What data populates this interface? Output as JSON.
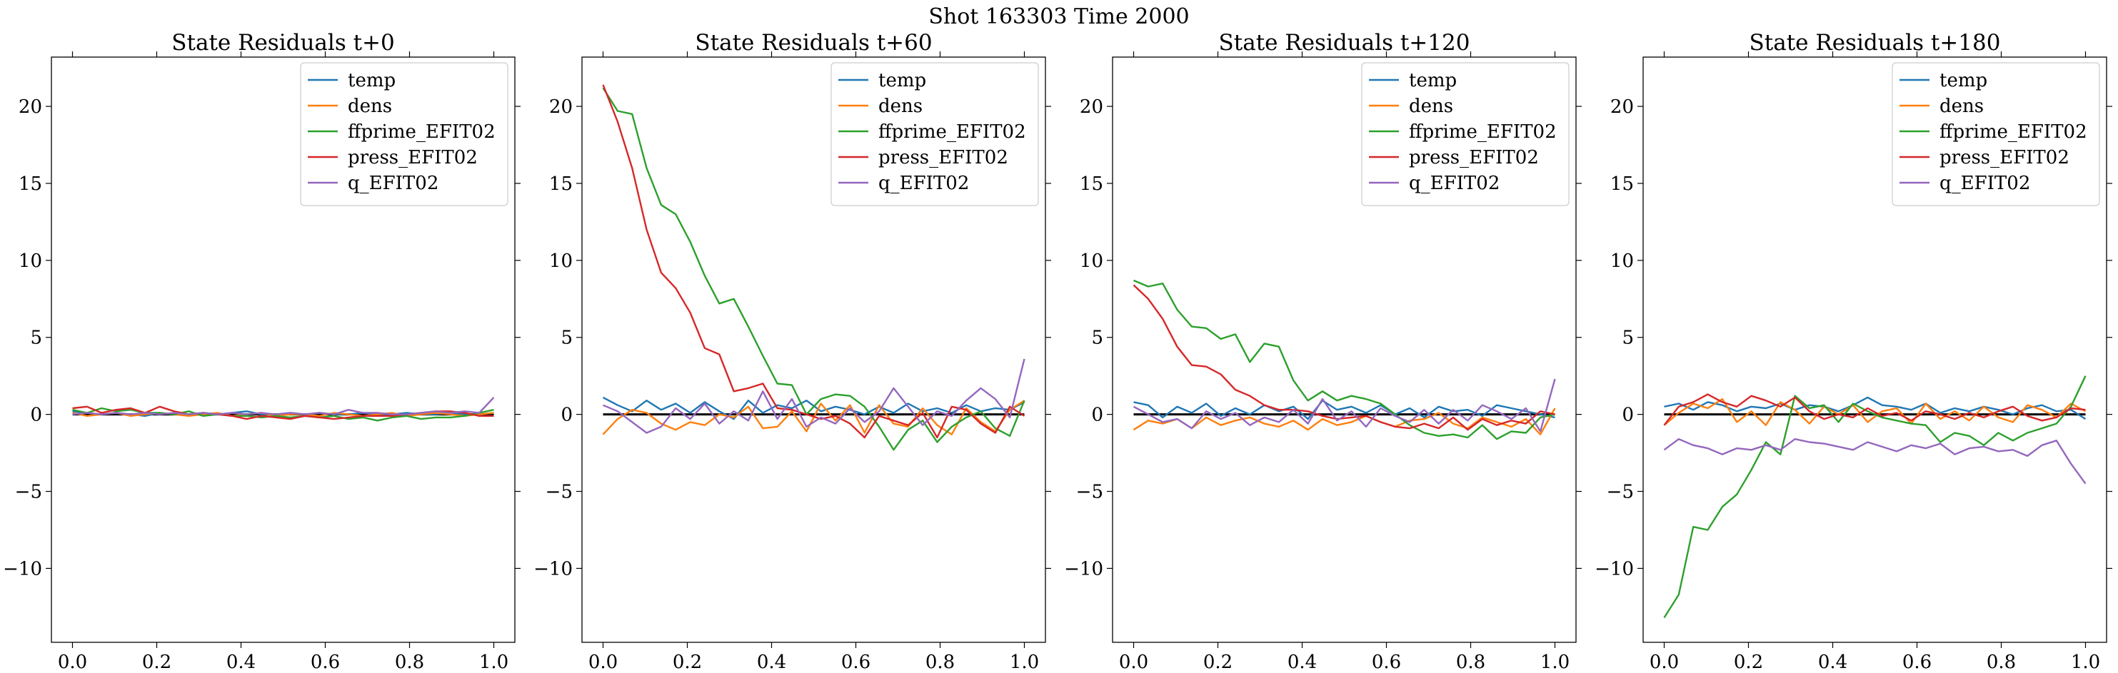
{
  "figure": {
    "suptitle": "Shot 163303   Time 2000"
  },
  "colors": {
    "temp": "#1f77b4",
    "dens": "#ff7f0e",
    "ffprime_EFIT02": "#2ca02c",
    "press_EFIT02": "#d62728",
    "q_EFIT02": "#9467bd",
    "zero_line": "#000000"
  },
  "chart_data": [
    {
      "type": "line",
      "title": "State Residuals t+0",
      "xlim": [
        -0.05,
        1.05
      ],
      "ylim": [
        -14.8,
        23.2
      ],
      "xticks": [
        0.0,
        0.2,
        0.4,
        0.6,
        0.8,
        1.0
      ],
      "xtick_labels": [
        "0.0",
        "0.2",
        "0.4",
        "0.6",
        "0.8",
        "1.0"
      ],
      "yticks": [
        -10,
        -5,
        0,
        5,
        10,
        15,
        20
      ],
      "ytick_labels": [
        "−10",
        "−5",
        "0",
        "5",
        "10",
        "15",
        "20"
      ],
      "legend": "top-right",
      "x": [
        0.0,
        0.0345,
        0.069,
        0.1034,
        0.1379,
        0.1724,
        0.2069,
        0.2414,
        0.2759,
        0.3103,
        0.3448,
        0.3793,
        0.4138,
        0.4483,
        0.4828,
        0.5172,
        0.5517,
        0.5862,
        0.6207,
        0.6552,
        0.6897,
        0.7241,
        0.7586,
        0.7931,
        0.8276,
        0.8621,
        0.8966,
        0.931,
        0.9655,
        1.0
      ],
      "series": [
        {
          "name": "temp",
          "values": [
            0.2,
            0.1,
            0.0,
            0.1,
            0.0,
            -0.1,
            0.1,
            0.0,
            0.0,
            0.1,
            0.0,
            0.1,
            0.2,
            0.0,
            0.0,
            0.1,
            0.0,
            0.1,
            0.0,
            0.0,
            0.1,
            0.0,
            0.0,
            0.1,
            0.0,
            0.0,
            0.1,
            0.0,
            0.0,
            0.1
          ]
        },
        {
          "name": "dens",
          "values": [
            0.1,
            -0.1,
            0.0,
            0.1,
            -0.1,
            0.0,
            0.1,
            0.0,
            -0.1,
            0.0,
            0.1,
            -0.1,
            0.0,
            0.1,
            -0.1,
            0.0,
            0.0,
            -0.1,
            0.1,
            0.0,
            -0.1,
            0.0,
            0.1,
            -0.1,
            0.0,
            0.1,
            0.0,
            -0.1,
            0.0,
            0.1
          ]
        },
        {
          "name": "ffprime_EFIT02",
          "values": [
            0.3,
            0.1,
            0.4,
            0.2,
            0.3,
            0.1,
            0.1,
            0.0,
            0.2,
            -0.1,
            0.0,
            -0.1,
            -0.1,
            -0.2,
            -0.1,
            -0.2,
            -0.1,
            -0.2,
            -0.1,
            -0.3,
            -0.2,
            -0.4,
            -0.2,
            -0.1,
            -0.3,
            -0.2,
            -0.2,
            -0.1,
            0.1,
            0.3
          ]
        },
        {
          "name": "press_EFIT02",
          "values": [
            0.4,
            0.5,
            0.1,
            0.3,
            0.4,
            0.1,
            0.5,
            0.2,
            0.0,
            0.1,
            0.0,
            -0.1,
            -0.3,
            -0.1,
            -0.2,
            -0.3,
            -0.1,
            -0.2,
            -0.3,
            -0.2,
            -0.1,
            -0.1,
            -0.1,
            0.0,
            0.1,
            0.2,
            0.2,
            0.1,
            -0.1,
            -0.1
          ]
        },
        {
          "name": "q_EFIT02",
          "values": [
            0.0,
            0.1,
            0.0,
            0.1,
            0.0,
            0.1,
            0.0,
            0.1,
            0.0,
            0.1,
            0.0,
            0.1,
            0.0,
            0.1,
            0.0,
            0.1,
            0.0,
            0.1,
            0.0,
            0.3,
            0.1,
            0.1,
            0.0,
            0.0,
            0.1,
            0.2,
            0.1,
            0.2,
            0.1,
            1.1
          ]
        }
      ]
    },
    {
      "type": "line",
      "title": "State Residuals t+60",
      "xlim": [
        -0.05,
        1.05
      ],
      "ylim": [
        -14.8,
        23.2
      ],
      "xticks": [
        0.0,
        0.2,
        0.4,
        0.6,
        0.8,
        1.0
      ],
      "xtick_labels": [
        "0.0",
        "0.2",
        "0.4",
        "0.6",
        "0.8",
        "1.0"
      ],
      "yticks": [
        -10,
        -5,
        0,
        5,
        10,
        15,
        20
      ],
      "ytick_labels": [
        "−10",
        "−5",
        "0",
        "5",
        "10",
        "15",
        "20"
      ],
      "legend": "top-right",
      "x": [
        0.0,
        0.0345,
        0.069,
        0.1034,
        0.1379,
        0.1724,
        0.2069,
        0.2414,
        0.2759,
        0.3103,
        0.3448,
        0.3793,
        0.4138,
        0.4483,
        0.4828,
        0.5172,
        0.5517,
        0.5862,
        0.6207,
        0.6552,
        0.6897,
        0.7241,
        0.7586,
        0.7931,
        0.8276,
        0.8621,
        0.8966,
        0.931,
        0.9655,
        1.0
      ],
      "series": [
        {
          "name": "temp",
          "values": [
            1.1,
            0.6,
            0.2,
            0.9,
            0.3,
            0.7,
            0.1,
            0.8,
            0.2,
            -0.3,
            0.9,
            0.1,
            0.6,
            0.4,
            0.9,
            0.2,
            0.5,
            0.3,
            0.0,
            0.5,
            0.1,
            0.7,
            0.2,
            0.4,
            0.1,
            0.6,
            0.2,
            0.4,
            0.3,
            0.8
          ]
        },
        {
          "name": "dens",
          "values": [
            -1.3,
            -0.3,
            0.3,
            0.1,
            -0.6,
            -1.0,
            -0.5,
            -0.7,
            0.0,
            -0.2,
            0.5,
            -0.9,
            -0.8,
            0.2,
            -1.1,
            0.7,
            -0.4,
            0.6,
            -1.2,
            0.6,
            -0.6,
            -0.8,
            0.4,
            -0.7,
            -1.3,
            0.4,
            -0.5,
            -1.1,
            0.3,
            0.9
          ]
        },
        {
          "name": "ffprime_EFIT02",
          "values": [
            21.2,
            19.7,
            19.5,
            16.0,
            13.6,
            13.0,
            11.2,
            9.0,
            7.2,
            7.5,
            5.7,
            3.8,
            2.0,
            1.9,
            0.0,
            1.0,
            1.3,
            1.2,
            0.5,
            -0.8,
            -2.3,
            -1.0,
            -0.4,
            -1.8,
            -0.8,
            -0.2,
            0.2,
            -0.9,
            -1.4,
            0.9
          ]
        },
        {
          "name": "press_EFIT02",
          "values": [
            21.4,
            19.0,
            16.0,
            12.0,
            9.2,
            8.2,
            6.6,
            4.3,
            3.9,
            1.5,
            1.7,
            2.0,
            0.4,
            0.3,
            0.0,
            -0.3,
            -0.1,
            -0.6,
            -1.5,
            -0.1,
            -0.4,
            -0.7,
            0.1,
            -1.5,
            0.5,
            0.3,
            -0.6,
            -1.2,
            0.5,
            -0.1
          ]
        },
        {
          "name": "q_EFIT02",
          "values": [
            0.6,
            0.2,
            -0.5,
            -1.2,
            -0.8,
            0.4,
            -0.3,
            0.7,
            -0.6,
            0.2,
            -0.4,
            1.5,
            -0.3,
            1.0,
            -0.8,
            -0.2,
            -0.6,
            0.4,
            -0.5,
            0.2,
            1.7,
            0.5,
            -0.7,
            0.2,
            -0.1,
            0.9,
            1.7,
            1.0,
            -0.2,
            3.6
          ]
        }
      ]
    },
    {
      "type": "line",
      "title": "State Residuals t+120",
      "xlim": [
        -0.05,
        1.05
      ],
      "ylim": [
        -14.8,
        23.2
      ],
      "xticks": [
        0.0,
        0.2,
        0.4,
        0.6,
        0.8,
        1.0
      ],
      "xtick_labels": [
        "0.0",
        "0.2",
        "0.4",
        "0.6",
        "0.8",
        "1.0"
      ],
      "yticks": [
        -10,
        -5,
        0,
        5,
        10,
        15,
        20
      ],
      "ytick_labels": [
        "−10",
        "−5",
        "0",
        "5",
        "10",
        "15",
        "20"
      ],
      "legend": "top-right",
      "x": [
        0.0,
        0.0345,
        0.069,
        0.1034,
        0.1379,
        0.1724,
        0.2069,
        0.2414,
        0.2759,
        0.3103,
        0.3448,
        0.3793,
        0.4138,
        0.4483,
        0.4828,
        0.5172,
        0.5517,
        0.5862,
        0.6207,
        0.6552,
        0.6897,
        0.7241,
        0.7586,
        0.7931,
        0.8276,
        0.8621,
        0.8966,
        0.931,
        0.9655,
        1.0
      ],
      "series": [
        {
          "name": "temp",
          "values": [
            0.8,
            0.6,
            -0.2,
            0.5,
            0.1,
            0.7,
            -0.1,
            0.4,
            0.0,
            0.6,
            0.2,
            0.5,
            -0.3,
            0.9,
            0.3,
            0.5,
            0.1,
            0.6,
            0.0,
            0.4,
            -0.2,
            0.5,
            0.2,
            0.3,
            -0.1,
            0.6,
            0.4,
            0.2,
            0.0,
            -0.2
          ]
        },
        {
          "name": "dens",
          "values": [
            -1.0,
            -0.4,
            -0.6,
            -0.3,
            -0.9,
            -0.2,
            -0.7,
            -0.4,
            -0.2,
            -0.6,
            -0.8,
            -0.4,
            -1.0,
            -0.3,
            -0.7,
            -0.5,
            -0.1,
            -0.5,
            -0.8,
            -0.4,
            -0.3,
            0.1,
            -0.6,
            -0.9,
            -0.2,
            -0.5,
            -0.8,
            -0.3,
            -1.3,
            0.4
          ]
        },
        {
          "name": "ffprime_EFIT02",
          "values": [
            8.7,
            8.3,
            8.5,
            6.8,
            5.7,
            5.6,
            4.9,
            5.2,
            3.4,
            4.6,
            4.4,
            2.2,
            0.9,
            1.5,
            0.9,
            1.2,
            1.0,
            0.7,
            0.0,
            -0.7,
            -1.2,
            -1.4,
            -1.3,
            -1.5,
            -0.7,
            -1.6,
            -1.1,
            -1.2,
            -0.2,
            0.0
          ]
        },
        {
          "name": "press_EFIT02",
          "values": [
            8.4,
            7.5,
            6.2,
            4.4,
            3.2,
            3.1,
            2.6,
            1.6,
            1.2,
            0.6,
            0.3,
            0.3,
            0.2,
            -0.1,
            -0.3,
            -0.2,
            -0.1,
            -0.5,
            -0.8,
            -0.9,
            -0.6,
            -0.9,
            -0.2,
            -1.0,
            -0.3,
            -0.7,
            -0.4,
            -0.6,
            0.2,
            0.0
          ]
        },
        {
          "name": "q_EFIT02",
          "values": [
            0.5,
            0.0,
            -0.5,
            -0.3,
            -0.9,
            0.2,
            -0.3,
            0.1,
            -0.7,
            -0.2,
            -0.5,
            0.3,
            -0.6,
            1.0,
            -0.4,
            0.2,
            -0.8,
            0.4,
            -0.1,
            -0.5,
            0.3,
            -0.6,
            0.3,
            -0.4,
            0.6,
            0.2,
            -0.3,
            0.4,
            -1.1,
            2.3
          ]
        }
      ]
    },
    {
      "type": "line",
      "title": "State Residuals t+180",
      "xlim": [
        -0.05,
        1.05
      ],
      "ylim": [
        -14.8,
        23.2
      ],
      "xticks": [
        0.0,
        0.2,
        0.4,
        0.6,
        0.8,
        1.0
      ],
      "xtick_labels": [
        "0.0",
        "0.2",
        "0.4",
        "0.6",
        "0.8",
        "1.0"
      ],
      "yticks": [
        -10,
        -5,
        0,
        5,
        10,
        15,
        20
      ],
      "ytick_labels": [
        "−10",
        "−5",
        "0",
        "5",
        "10",
        "15",
        "20"
      ],
      "legend": "top-right",
      "x": [
        0.0,
        0.0345,
        0.069,
        0.1034,
        0.1379,
        0.1724,
        0.2069,
        0.2414,
        0.2759,
        0.3103,
        0.3448,
        0.3793,
        0.4138,
        0.4483,
        0.4828,
        0.5172,
        0.5517,
        0.5862,
        0.6207,
        0.6552,
        0.6897,
        0.7241,
        0.7586,
        0.7931,
        0.8276,
        0.8621,
        0.8966,
        0.931,
        0.9655,
        1.0
      ],
      "series": [
        {
          "name": "temp",
          "values": [
            0.5,
            0.7,
            0.3,
            0.8,
            0.6,
            0.2,
            0.5,
            0.4,
            0.7,
            0.3,
            0.6,
            0.5,
            0.2,
            0.6,
            1.1,
            0.6,
            0.5,
            0.3,
            0.7,
            0.1,
            0.4,
            0.2,
            0.5,
            0.3,
            0.0,
            0.4,
            0.6,
            0.2,
            0.3,
            -0.3
          ]
        },
        {
          "name": "dens",
          "values": [
            -0.7,
            0.1,
            0.7,
            0.4,
            1.0,
            -0.5,
            0.2,
            -0.7,
            0.8,
            0.3,
            -0.6,
            0.5,
            0.0,
            0.6,
            -0.5,
            0.2,
            0.4,
            -0.6,
            0.7,
            -0.3,
            0.2,
            -0.4,
            0.5,
            -0.2,
            -0.5,
            0.6,
            0.3,
            -0.2,
            0.7,
            0.2
          ]
        },
        {
          "name": "ffprime_EFIT02",
          "values": [
            -13.2,
            -11.7,
            -7.3,
            -7.5,
            -6.0,
            -5.2,
            -3.6,
            -1.8,
            -2.6,
            1.2,
            0.4,
            0.6,
            -0.5,
            0.7,
            0.2,
            -0.2,
            -0.4,
            -0.6,
            -0.7,
            -1.8,
            -1.2,
            -1.4,
            -2.0,
            -1.2,
            -1.7,
            -1.2,
            -0.9,
            -0.6,
            0.5,
            2.5
          ]
        },
        {
          "name": "press_EFIT02",
          "values": [
            -0.7,
            0.5,
            0.8,
            1.3,
            0.8,
            0.5,
            1.2,
            0.9,
            0.5,
            1.1,
            0.2,
            -0.3,
            0.0,
            -0.2,
            0.4,
            -0.1,
            0.1,
            -0.4,
            0.2,
            0.0,
            -0.3,
            0.1,
            -0.2,
            0.2,
            0.5,
            -0.1,
            -0.4,
            -0.2,
            0.4,
            0.3
          ]
        },
        {
          "name": "q_EFIT02",
          "values": [
            -2.3,
            -1.6,
            -2.0,
            -2.2,
            -2.6,
            -2.2,
            -2.3,
            -2.0,
            -2.3,
            -1.6,
            -1.8,
            -1.9,
            -2.1,
            -2.3,
            -1.8,
            -2.1,
            -2.4,
            -2.0,
            -2.2,
            -1.9,
            -2.6,
            -2.2,
            -2.1,
            -2.4,
            -2.3,
            -2.7,
            -2.0,
            -1.7,
            -3.2,
            -4.5
          ]
        }
      ]
    }
  ]
}
